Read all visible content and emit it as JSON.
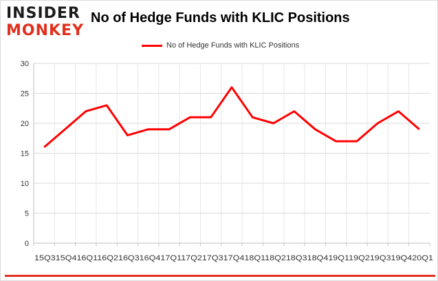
{
  "logo": {
    "line1": "INSIDER",
    "line2": "MONKEY"
  },
  "chart_data": {
    "type": "line",
    "title": "No of Hedge Funds with KLIC Positions",
    "xlabel": "",
    "ylabel": "",
    "x_tick_text": "15Q315Q416Q116Q216Q316Q417Q117Q217Q317Q418Q118Q218Q318Q419Q119Q219Q319Q420Q1",
    "categories": [
      "15Q3",
      "15Q4",
      "16Q1",
      "16Q2",
      "16Q3",
      "16Q4",
      "17Q1",
      "17Q2",
      "17Q3",
      "17Q4",
      "18Q1",
      "18Q2",
      "18Q3",
      "18Q4",
      "19Q1",
      "19Q2",
      "19Q3",
      "19Q4",
      "20Q1"
    ],
    "series": [
      {
        "name": "No of Hedge Funds with KLIC Positions",
        "values": [
          16,
          19,
          22,
          23,
          18,
          19,
          19,
          21,
          21,
          26,
          21,
          20,
          22,
          19,
          17,
          17,
          20,
          22,
          19
        ],
        "color": "#ff0000"
      }
    ],
    "ylim": [
      0,
      30
    ],
    "yticks": [
      0,
      5,
      10,
      15,
      20,
      25,
      30
    ],
    "grid": true,
    "legend": "top-center"
  }
}
